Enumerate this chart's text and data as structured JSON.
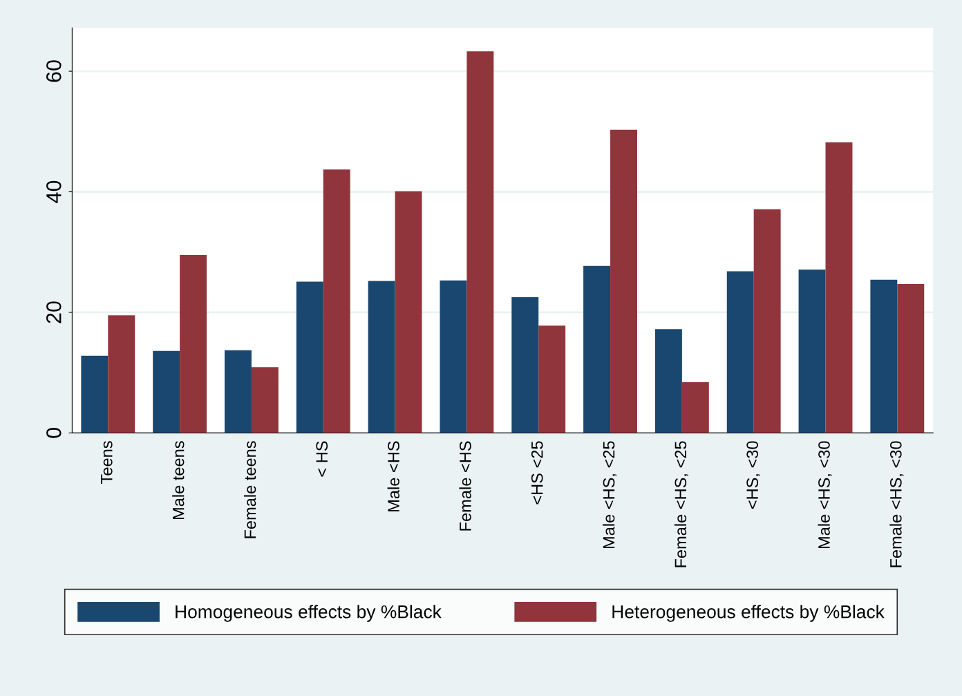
{
  "chart_data": {
    "type": "bar",
    "categories": [
      "Teens",
      "Male teens",
      "Female teens",
      "< HS",
      "Male <HS",
      "Female <HS",
      "<HS <25",
      "Male <HS, <25",
      "Female <HS, <25",
      "<HS, <30",
      "Male <HS, <30",
      "Female <HS, <30"
    ],
    "series": [
      {
        "name": "Homogeneous effects by %Black",
        "color": "#1a476f",
        "values": [
          12.8,
          13.6,
          13.7,
          25.1,
          25.2,
          25.3,
          22.5,
          27.7,
          17.2,
          26.8,
          27.1,
          25.4
        ]
      },
      {
        "name": "Heterogeneous effects by %Black",
        "color": "#90353b",
        "values": [
          19.5,
          29.5,
          10.9,
          43.7,
          40.1,
          63.3,
          17.8,
          50.3,
          8.4,
          37.1,
          48.2,
          24.7
        ]
      }
    ],
    "ylim": [
      0,
      67.2
    ],
    "yticks": [
      0,
      20,
      40,
      60
    ],
    "grid": "y",
    "legend": "bottom"
  }
}
